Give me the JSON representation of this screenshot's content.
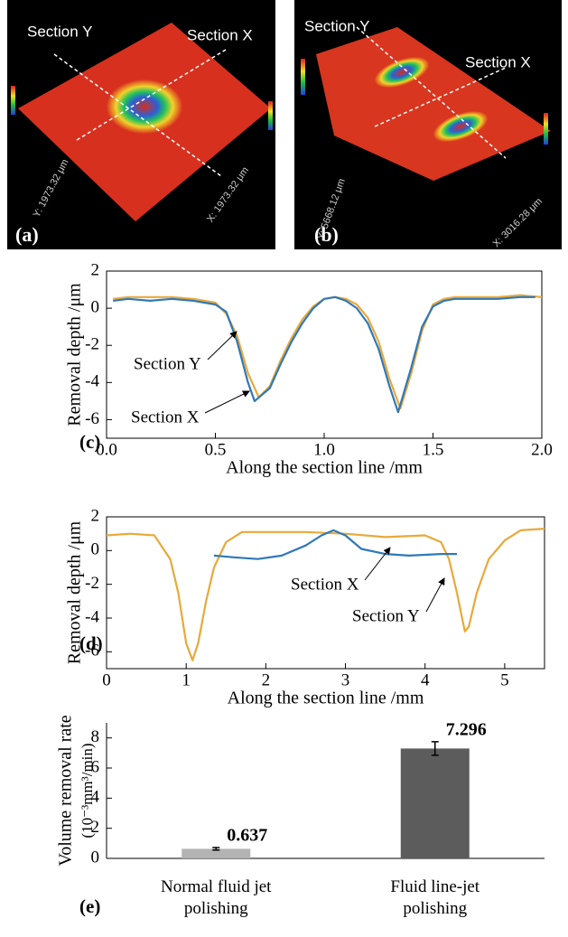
{
  "images": [
    {
      "panel_label": "(a)",
      "annotations": [
        "Section Y",
        "Section X"
      ],
      "axis_labels": [
        "Y: 1973.32 μm",
        "X: 1973.32 μm"
      ]
    },
    {
      "panel_label": "(b)",
      "annotations": [
        "Section Y",
        "Section X"
      ],
      "axis_labels": [
        "Y: 5668.12 μm",
        "X: 3016.28 μm"
      ]
    }
  ],
  "chart_data": [
    {
      "type": "line",
      "panel_label": "(c)",
      "xlabel": "Along the section line /mm",
      "ylabel": "Removal depth /μm",
      "xlim": [
        0,
        2
      ],
      "ylim": [
        -7,
        2
      ],
      "xticks": [
        {
          "value": 0,
          "label": "0.0"
        },
        0.5,
        {
          "value": 1,
          "label": "1.0"
        },
        1.5,
        {
          "value": 2,
          "label": "2.0"
        }
      ],
      "yticks": [
        2,
        0,
        -2,
        -4,
        -6
      ],
      "annotations": [
        "Section Y",
        "Section X"
      ],
      "series": [
        {
          "name": "Section Y",
          "color": "#e8a93a",
          "x": [
            0.03,
            0.1,
            0.2,
            0.3,
            0.4,
            0.5,
            0.55,
            0.6,
            0.65,
            0.7,
            0.75,
            0.8,
            0.85,
            0.9,
            0.95,
            1.0,
            1.05,
            1.1,
            1.15,
            1.2,
            1.25,
            1.3,
            1.35,
            1.4,
            1.45,
            1.5,
            1.55,
            1.6,
            1.7,
            1.8,
            1.9,
            2.0
          ],
          "values": [
            0.5,
            0.6,
            0.6,
            0.6,
            0.5,
            0.3,
            -0.3,
            -1.5,
            -3.5,
            -4.8,
            -4.2,
            -2.8,
            -1.6,
            -0.6,
            0.1,
            0.5,
            0.6,
            0.5,
            0.2,
            -0.5,
            -1.8,
            -3.8,
            -5.4,
            -3.5,
            -1.2,
            0.2,
            0.5,
            0.6,
            0.6,
            0.6,
            0.7,
            0.6
          ]
        },
        {
          "name": "Section X",
          "color": "#2f78b8",
          "x": [
            0.03,
            0.1,
            0.2,
            0.3,
            0.4,
            0.5,
            0.55,
            0.6,
            0.65,
            0.68,
            0.75,
            0.8,
            0.85,
            0.9,
            0.95,
            1.0,
            1.05,
            1.1,
            1.15,
            1.2,
            1.25,
            1.3,
            1.34,
            1.4,
            1.45,
            1.5,
            1.55,
            1.6,
            1.7,
            1.8,
            1.9,
            1.97
          ],
          "values": [
            0.4,
            0.5,
            0.4,
            0.5,
            0.4,
            0.2,
            -0.2,
            -1.8,
            -4.0,
            -5.0,
            -4.3,
            -3.0,
            -1.8,
            -0.8,
            0.0,
            0.5,
            0.6,
            0.4,
            0.0,
            -0.8,
            -2.2,
            -4.2,
            -5.6,
            -3.2,
            -1.0,
            0.1,
            0.4,
            0.5,
            0.5,
            0.5,
            0.6,
            0.6
          ]
        }
      ]
    },
    {
      "type": "line",
      "panel_label": "(d)",
      "xlabel": "Along the section line /mm",
      "ylabel": "Removal depth /μm",
      "xlim": [
        0,
        5.5
      ],
      "ylim": [
        -7,
        2
      ],
      "xticks": [
        0,
        1,
        2,
        3,
        4,
        5
      ],
      "yticks": [
        2,
        0,
        -2,
        -4,
        -6
      ],
      "annotations": [
        "Section X",
        "Section Y"
      ],
      "series": [
        {
          "name": "Section Y",
          "color": "#e8a93a",
          "x": [
            0,
            0.3,
            0.6,
            0.8,
            0.9,
            1.0,
            1.08,
            1.15,
            1.25,
            1.35,
            1.5,
            1.7,
            2.0,
            2.5,
            3.0,
            3.5,
            4.0,
            4.2,
            4.3,
            4.4,
            4.5,
            4.55,
            4.65,
            4.8,
            5.0,
            5.2,
            5.5
          ],
          "values": [
            0.9,
            1.0,
            0.9,
            -0.5,
            -2.5,
            -5.5,
            -6.5,
            -5.5,
            -3.0,
            -1.0,
            0.5,
            1.1,
            1.1,
            1.1,
            1.0,
            0.8,
            0.9,
            0.5,
            -0.5,
            -2.5,
            -4.8,
            -4.5,
            -2.5,
            -0.5,
            0.6,
            1.2,
            1.3
          ]
        },
        {
          "name": "Section X",
          "color": "#2f78b8",
          "x": [
            1.35,
            1.6,
            1.9,
            2.2,
            2.5,
            2.7,
            2.85,
            3.0,
            3.2,
            3.5,
            3.8,
            4.2,
            4.4
          ],
          "values": [
            -0.3,
            -0.4,
            -0.5,
            -0.3,
            0.3,
            0.9,
            1.2,
            0.9,
            0.1,
            -0.2,
            -0.3,
            -0.2,
            -0.2
          ]
        }
      ]
    },
    {
      "type": "bar",
      "panel_label": "(e)",
      "ylabel": [
        "Volume removal rate",
        "(10⁻³mm³/min)"
      ],
      "ylim": [
        0,
        9
      ],
      "yticks": [
        0,
        2,
        4,
        6,
        8
      ],
      "categories": [
        "Normal fluid jet polishing",
        "Fluid line-jet polishing"
      ],
      "values": [
        0.637,
        7.296
      ],
      "errors": [
        0.08,
        0.45
      ],
      "colors": [
        "#b3b3b3",
        "#5c5c5c"
      ]
    }
  ]
}
